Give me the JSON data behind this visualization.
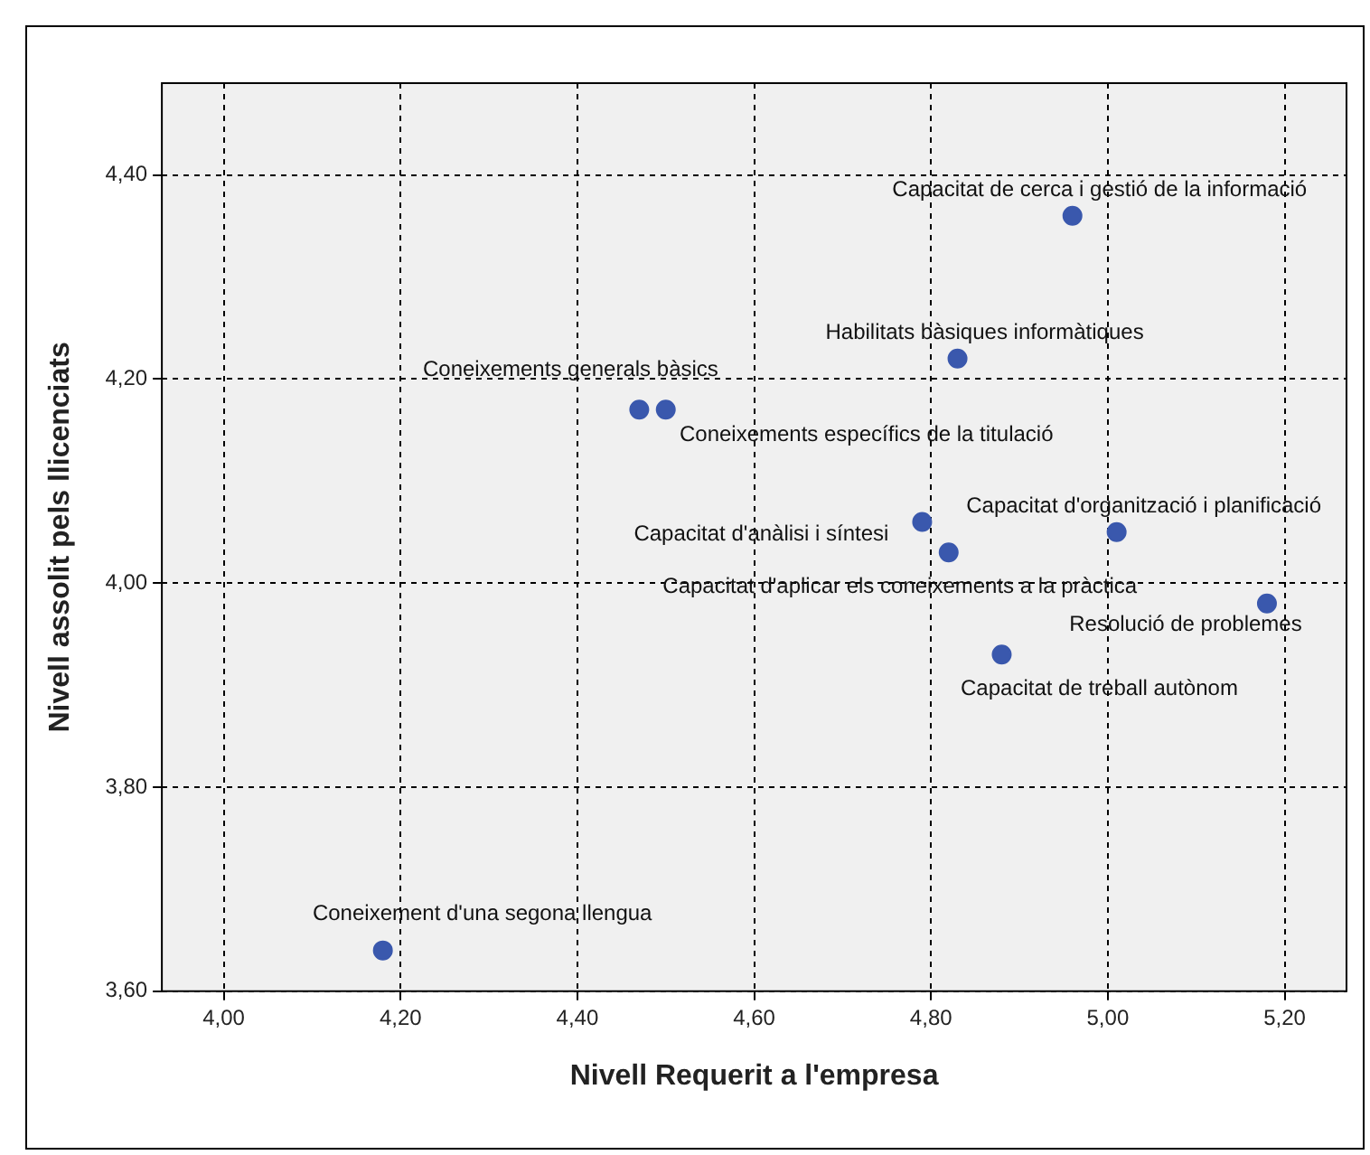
{
  "chart_data": {
    "type": "scatter",
    "xlabel": "Nivell Requerit a l'empresa",
    "ylabel": "Nivell assolit pels llicenciats",
    "series": [
      {
        "color": "#3a58ad",
        "x": [
          4.96,
          4.83,
          4.47,
          4.5,
          4.79,
          4.82,
          5.01,
          5.18,
          4.88,
          4.18
        ],
        "values": [
          4.36,
          4.22,
          4.17,
          4.17,
          4.06,
          4.03,
          4.05,
          3.98,
          3.93,
          3.64
        ]
      }
    ],
    "annotations": [
      {
        "text": "Capacitat de cerca i gestió de la informació",
        "x": 4.96,
        "y": 4.36
      },
      {
        "text": "Habilitats bàsiques informàtiques",
        "x": 4.83,
        "y": 4.22
      },
      {
        "text": "Coneixements generals bàsics",
        "x": 4.47,
        "y": 4.17
      },
      {
        "text": "Coneixements específics de la titulació",
        "x": 4.5,
        "y": 4.17
      },
      {
        "text": "Capacitat d'anàlisi i síntesi",
        "x": 4.79,
        "y": 4.06
      },
      {
        "text": "Capacitat d'aplicar els coneixements a la pràctica",
        "x": 4.82,
        "y": 4.03
      },
      {
        "text": "Capacitat d'organització i planificació",
        "x": 5.01,
        "y": 4.05
      },
      {
        "text": "Resolució de problemes",
        "x": 5.18,
        "y": 3.98
      },
      {
        "text": "Capacitat de treball autònom",
        "x": 4.88,
        "y": 3.93
      },
      {
        "text": "Coneixement d'una segona llengua",
        "x": 4.18,
        "y": 3.64
      }
    ],
    "xlim": [
      3.93,
      5.27
    ],
    "xticks": [
      {
        "value": 4,
        "label": "4,00"
      },
      {
        "value": 4.2,
        "label": "4,20"
      },
      {
        "value": 4.4,
        "label": "4,40"
      },
      {
        "value": 4.6,
        "label": "4,60"
      },
      {
        "value": 4.8,
        "label": "4,80"
      },
      {
        "value": 5,
        "label": "5,00"
      },
      {
        "value": 5.2,
        "label": "5,20"
      }
    ],
    "ylim": [
      3.6,
      4.49
    ],
    "yticks": [
      {
        "value": 3.6,
        "label": "3,60"
      },
      {
        "value": 3.8,
        "label": "3,80"
      },
      {
        "value": 4,
        "label": "4,00"
      },
      {
        "value": 4.2,
        "label": "4,20"
      },
      {
        "value": 4.4,
        "label": "4,40"
      }
    ],
    "grid": true,
    "marker": "circle"
  }
}
